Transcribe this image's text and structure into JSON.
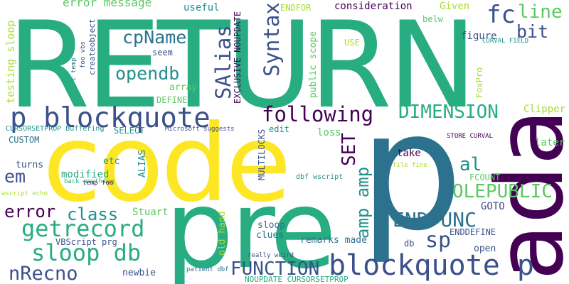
{
  "palette": {
    "dark_purple": "#440154",
    "indigo": "#3b518b",
    "blue": "#2c728e",
    "teal": "#21908d",
    "green_teal": "#27ad81",
    "green": "#5cc863",
    "light_green": "#aadc32",
    "yellow": "#fde725"
  },
  "words": [
    {
      "text": "RETURN",
      "color": "green_teal"
    },
    {
      "text": "code",
      "color": "yellow"
    },
    {
      "text": "pre",
      "color": "green_teal"
    },
    {
      "text": "p",
      "color": "blue"
    },
    {
      "text": "ada",
      "color": "dark_purple"
    },
    {
      "text": "p blockquote",
      "color": "indigo"
    },
    {
      "text": "blockquote p",
      "color": "indigo"
    },
    {
      "text": "getrecord",
      "color": "green_teal"
    },
    {
      "text": "sloop db",
      "color": "green_teal"
    },
    {
      "text": "nRecno",
      "color": "indigo"
    },
    {
      "text": "FUNCTION",
      "color": "indigo"
    },
    {
      "text": "following",
      "color": "dark_purple"
    },
    {
      "text": "DIMENSION",
      "color": "green_teal"
    },
    {
      "text": "ENDFUNC",
      "color": "blue"
    },
    {
      "text": "OLEPUBLIC",
      "color": "green"
    },
    {
      "text": "error",
      "color": "dark_purple"
    },
    {
      "text": "class",
      "color": "teal"
    },
    {
      "text": "cpName",
      "color": "blue"
    },
    {
      "text": "opendb",
      "color": "teal"
    },
    {
      "text": "fc",
      "color": "indigo"
    },
    {
      "text": "line",
      "color": "green"
    },
    {
      "text": "bit",
      "color": "indigo"
    },
    {
      "text": "sp",
      "color": "indigo"
    },
    {
      "text": "al",
      "color": "teal"
    },
    {
      "text": "em",
      "color": "indigo"
    },
    {
      "text": "Syntax",
      "color": "indigo"
    },
    {
      "text": "SAlias",
      "color": "indigo"
    },
    {
      "text": "SET",
      "color": "dark_purple"
    },
    {
      "text": "amp amp",
      "color": "teal"
    },
    {
      "text": "error message",
      "color": "green"
    },
    {
      "text": "testing sloop",
      "color": "light_green"
    },
    {
      "text": "foo vbs",
      "color": "indigo"
    },
    {
      "text": "createobject",
      "color": "indigo"
    },
    {
      "text": "c temp",
      "color": "blue"
    },
    {
      "text": "useful",
      "color": "teal"
    },
    {
      "text": "EXCLUSIVE NOUPDATE",
      "color": "dark_purple"
    },
    {
      "text": "ENDFOR",
      "color": "light_green"
    },
    {
      "text": "consideration",
      "color": "dark_purple"
    },
    {
      "text": "Given",
      "color": "light_green"
    },
    {
      "text": "belw",
      "color": "green"
    },
    {
      "text": "public scope",
      "color": "green"
    },
    {
      "text": "USE",
      "color": "light_green"
    },
    {
      "text": "figure",
      "color": "indigo"
    },
    {
      "text": "CURVAL FIELD",
      "color": "teal"
    },
    {
      "text": "seem",
      "color": "indigo"
    },
    {
      "text": "array",
      "color": "green"
    },
    {
      "text": "DEFINE",
      "color": "green"
    },
    {
      "text": "FoxPro",
      "color": "light_green"
    },
    {
      "text": "Clipper",
      "color": "light_green"
    },
    {
      "text": "CURSORSETPROP Buffering",
      "color": "teal"
    },
    {
      "text": "SELECT",
      "color": "teal"
    },
    {
      "text": "Microsoft suggests",
      "color": "indigo"
    },
    {
      "text": "edit",
      "color": "teal"
    },
    {
      "text": "loss",
      "color": "green"
    },
    {
      "text": "STORE CURVAL",
      "color": "dark_purple"
    },
    {
      "text": "later",
      "color": "green"
    },
    {
      "text": "CUSTOM",
      "color": "blue"
    },
    {
      "text": "etc",
      "color": "teal"
    },
    {
      "text": "MULTILOCKS",
      "color": "indigo"
    },
    {
      "text": "take",
      "color": "dark_purple"
    },
    {
      "text": "file fine",
      "color": "light_green"
    },
    {
      "text": "ALIAS",
      "color": "teal"
    },
    {
      "text": "temp foo",
      "color": "dark_purple"
    },
    {
      "text": "turns",
      "color": "indigo"
    },
    {
      "text": "modified",
      "color": "green_teal"
    },
    {
      "text": "back anything",
      "color": "green_teal"
    },
    {
      "text": "dbf wscript",
      "color": "teal"
    },
    {
      "text": "FCOUNT",
      "color": "green"
    },
    {
      "text": "wscript echo",
      "color": "light_green"
    },
    {
      "text": "Stuart",
      "color": "green"
    },
    {
      "text": "GOTO",
      "color": "indigo"
    },
    {
      "text": "sloop",
      "color": "blue"
    },
    {
      "text": "clues",
      "color": "blue"
    },
    {
      "text": "old hand",
      "color": "light_green"
    },
    {
      "text": "remarks made",
      "color": "blue"
    },
    {
      "text": "ENDDEFINE",
      "color": "indigo"
    },
    {
      "text": "VBScript prg",
      "color": "indigo"
    },
    {
      "text": "db",
      "color": "indigo"
    },
    {
      "text": "open",
      "color": "indigo"
    },
    {
      "text": "really weird",
      "color": "indigo"
    },
    {
      "text": "newbie",
      "color": "indigo"
    },
    {
      "text": "patient dbf",
      "color": "blue"
    },
    {
      "text": "NOUPDATE CURSORSETPROP",
      "color": "green_teal"
    }
  ]
}
